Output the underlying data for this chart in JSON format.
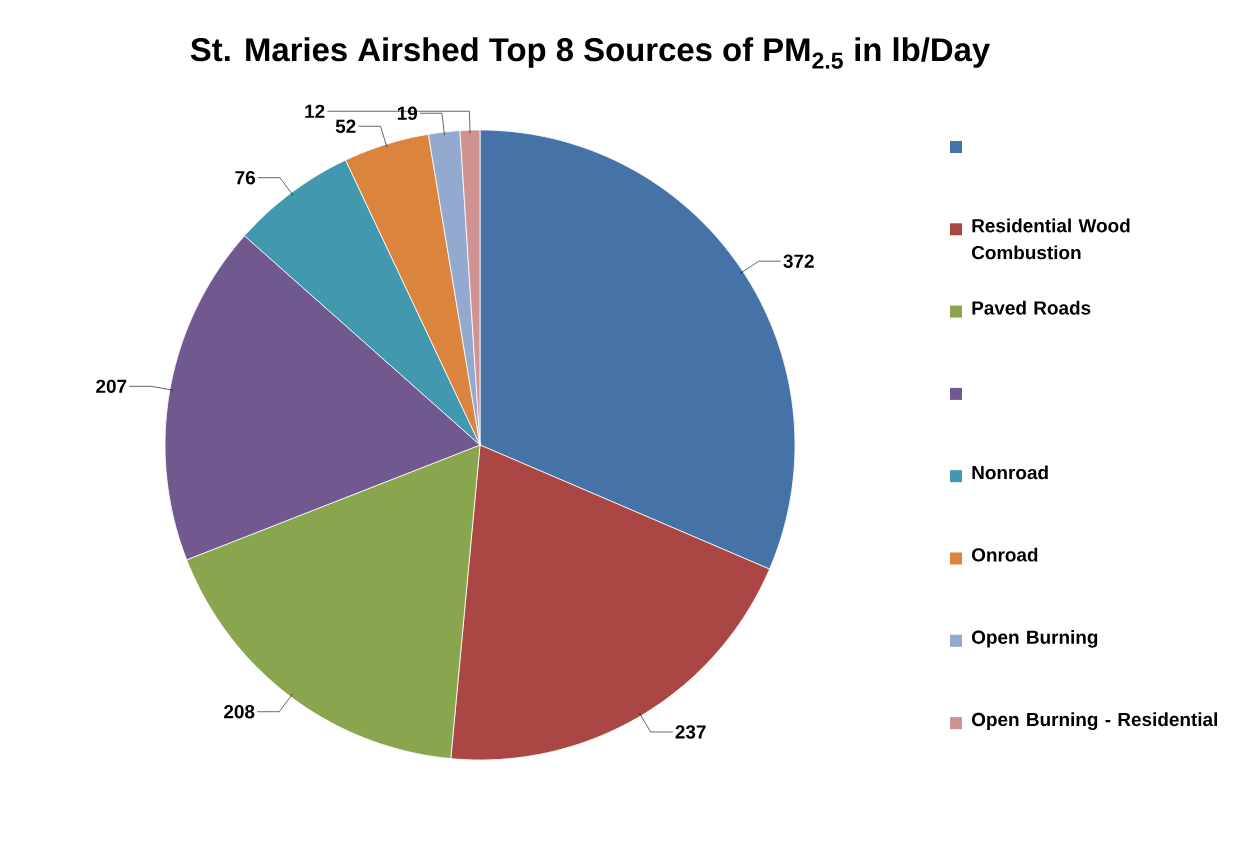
{
  "chart_data": {
    "type": "pie",
    "title": "St. Maries Airshed Top 8 Sources of PM$_{2.5}$ in lb/Day",
    "categories": [
      null,
      "Residential Wood Combustion",
      "Paved Roads",
      null,
      "Nonroad",
      "Onroad",
      "Open Burning",
      "Open Burning - Residential"
    ],
    "values": [
      372,
      237,
      208,
      207,
      76,
      52,
      19,
      12
    ],
    "colors": [
      "#4572a7",
      "#aa4643",
      "#89a54e",
      "#71588f",
      "#4198af",
      "#db843d",
      "#93a9cf",
      "#d19392"
    ],
    "data_labels": true,
    "legend": "right"
  }
}
